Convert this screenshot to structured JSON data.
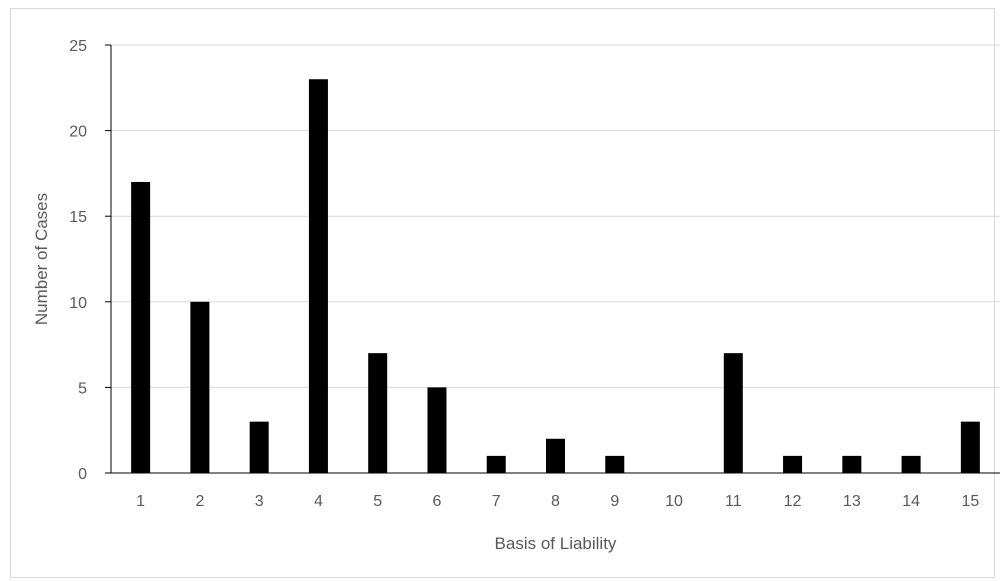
{
  "chart_data": {
    "type": "bar",
    "categories": [
      "1",
      "2",
      "3",
      "4",
      "5",
      "6",
      "7",
      "8",
      "9",
      "10",
      "11",
      "12",
      "13",
      "14",
      "15"
    ],
    "values": [
      17,
      10,
      3,
      23,
      7,
      5,
      1,
      2,
      1,
      0,
      7,
      1,
      1,
      1,
      3
    ],
    "title": "",
    "xlabel": "Basis of Liability",
    "ylabel": "Number of Cases",
    "ylim": [
      0,
      25
    ],
    "yticks": [
      "0",
      "5",
      "10",
      "15",
      "20",
      "25"
    ],
    "grid": true,
    "legend": "none",
    "colors": {
      "bar": "#000000",
      "grid": "#d9d9d9",
      "axis": "#000000",
      "text": "#595959"
    }
  }
}
